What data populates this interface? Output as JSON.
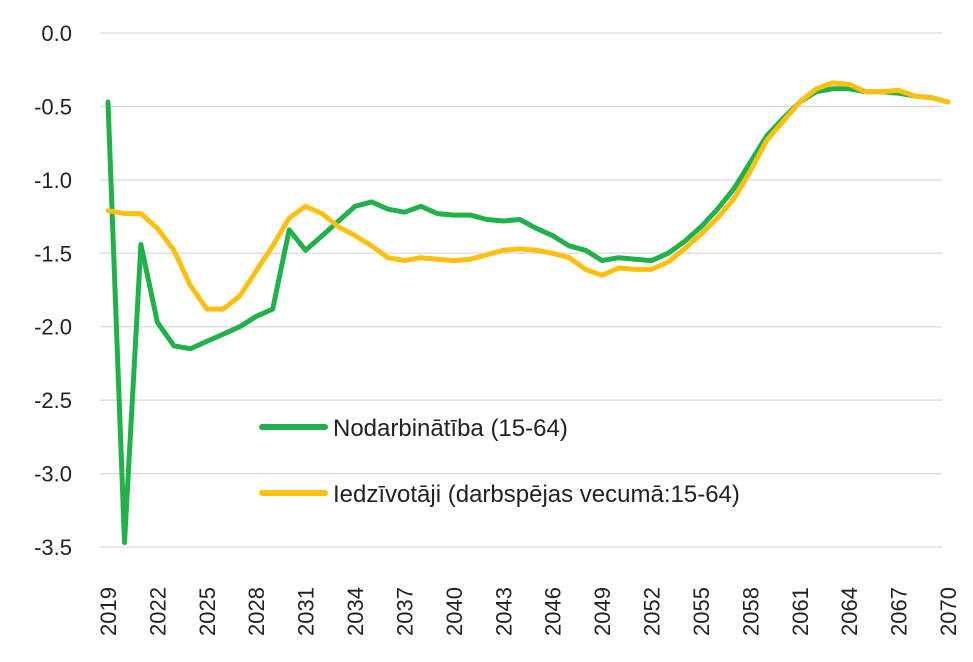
{
  "chart_data": {
    "type": "line",
    "title": "",
    "xlabel": "",
    "ylabel": "",
    "ylim": [
      -3.5,
      0.0
    ],
    "xlim": [
      2019,
      2070
    ],
    "y_ticks": [
      "0.0",
      "-0.5",
      "-1.0",
      "-1.5",
      "-2.0",
      "-2.5",
      "-3.0",
      "-3.5"
    ],
    "x_ticks": [
      "2019",
      "2022",
      "2025",
      "2028",
      "2031",
      "2034",
      "2037",
      "2040",
      "2043",
      "2046",
      "2049",
      "2052",
      "2055",
      "2058",
      "2061",
      "2064",
      "2067",
      "2070"
    ],
    "grid": true,
    "legend_position": "center",
    "x": [
      2019,
      2020,
      2021,
      2022,
      2023,
      2024,
      2025,
      2026,
      2027,
      2028,
      2029,
      2030,
      2031,
      2032,
      2033,
      2034,
      2035,
      2036,
      2037,
      2038,
      2039,
      2040,
      2041,
      2042,
      2043,
      2044,
      2045,
      2046,
      2047,
      2048,
      2049,
      2050,
      2051,
      2052,
      2053,
      2054,
      2055,
      2056,
      2057,
      2058,
      2059,
      2060,
      2061,
      2062,
      2063,
      2064,
      2065,
      2066,
      2067,
      2068,
      2069,
      2070
    ],
    "series": [
      {
        "name": "Nodarbinātība (15-64)",
        "color": "#21b14b",
        "values": [
          -0.47,
          -3.47,
          -1.44,
          -1.97,
          -2.13,
          -2.15,
          -2.1,
          -2.05,
          -2.0,
          -1.93,
          -1.88,
          -1.34,
          -1.48,
          -1.38,
          -1.28,
          -1.18,
          -1.15,
          -1.2,
          -1.22,
          -1.18,
          -1.23,
          -1.24,
          -1.24,
          -1.27,
          -1.28,
          -1.27,
          -1.33,
          -1.38,
          -1.45,
          -1.48,
          -1.55,
          -1.53,
          -1.54,
          -1.55,
          -1.5,
          -1.42,
          -1.32,
          -1.2,
          -1.06,
          -0.88,
          -0.7,
          -0.58,
          -0.47,
          -0.4,
          -0.38,
          -0.38,
          -0.4,
          -0.4,
          -0.41,
          -0.43,
          -0.44,
          -0.47
        ]
      },
      {
        "name": "Iedzīvotāji (darbspējas vecumā:15-64)",
        "color": "#fdc010",
        "values": [
          -1.21,
          -1.23,
          -1.23,
          -1.33,
          -1.48,
          -1.72,
          -1.88,
          -1.88,
          -1.79,
          -1.62,
          -1.45,
          -1.26,
          -1.18,
          -1.23,
          -1.32,
          -1.38,
          -1.45,
          -1.53,
          -1.55,
          -1.53,
          -1.54,
          -1.55,
          -1.54,
          -1.51,
          -1.48,
          -1.47,
          -1.48,
          -1.5,
          -1.53,
          -1.61,
          -1.65,
          -1.6,
          -1.61,
          -1.61,
          -1.56,
          -1.47,
          -1.37,
          -1.26,
          -1.13,
          -0.94,
          -0.73,
          -0.6,
          -0.47,
          -0.38,
          -0.34,
          -0.35,
          -0.4,
          -0.4,
          -0.39,
          -0.43,
          -0.44,
          -0.47
        ]
      }
    ]
  }
}
